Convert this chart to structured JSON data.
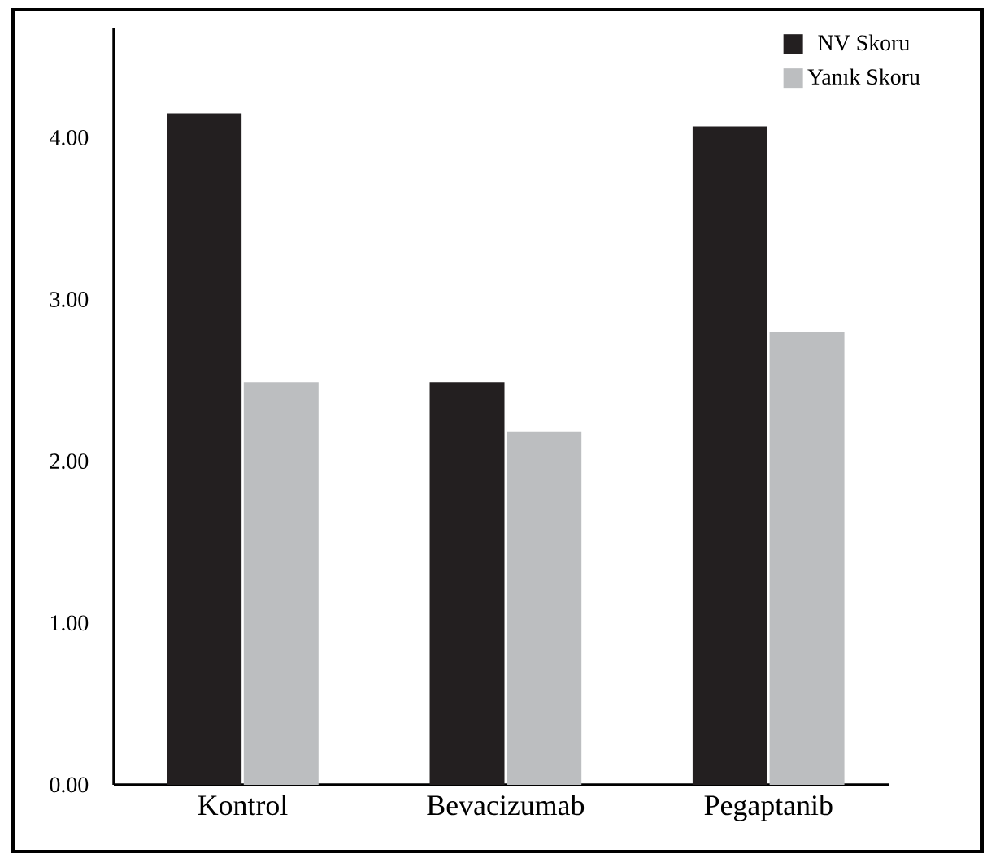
{
  "chart_data": {
    "type": "bar",
    "categories": [
      "Kontrol",
      "Bevacizumab",
      "Pegaptanib"
    ],
    "series": [
      {
        "name": "NV Skoru",
        "color": "#231f20",
        "values": [
          4.15,
          2.49,
          4.07
        ]
      },
      {
        "name": "Yanık  Skoru",
        "color": "#bcbec0",
        "values": [
          2.49,
          2.18,
          2.8
        ]
      }
    ],
    "ylim": [
      0,
      4.68
    ],
    "yticks": [
      {
        "value": 0,
        "label": "0.00"
      },
      {
        "value": 1,
        "label": "1.00"
      },
      {
        "value": 2,
        "label": "2.00"
      },
      {
        "value": 3,
        "label": "3.00"
      },
      {
        "value": 4,
        "label": "4.00"
      }
    ],
    "grid": false,
    "legend": "top right"
  }
}
